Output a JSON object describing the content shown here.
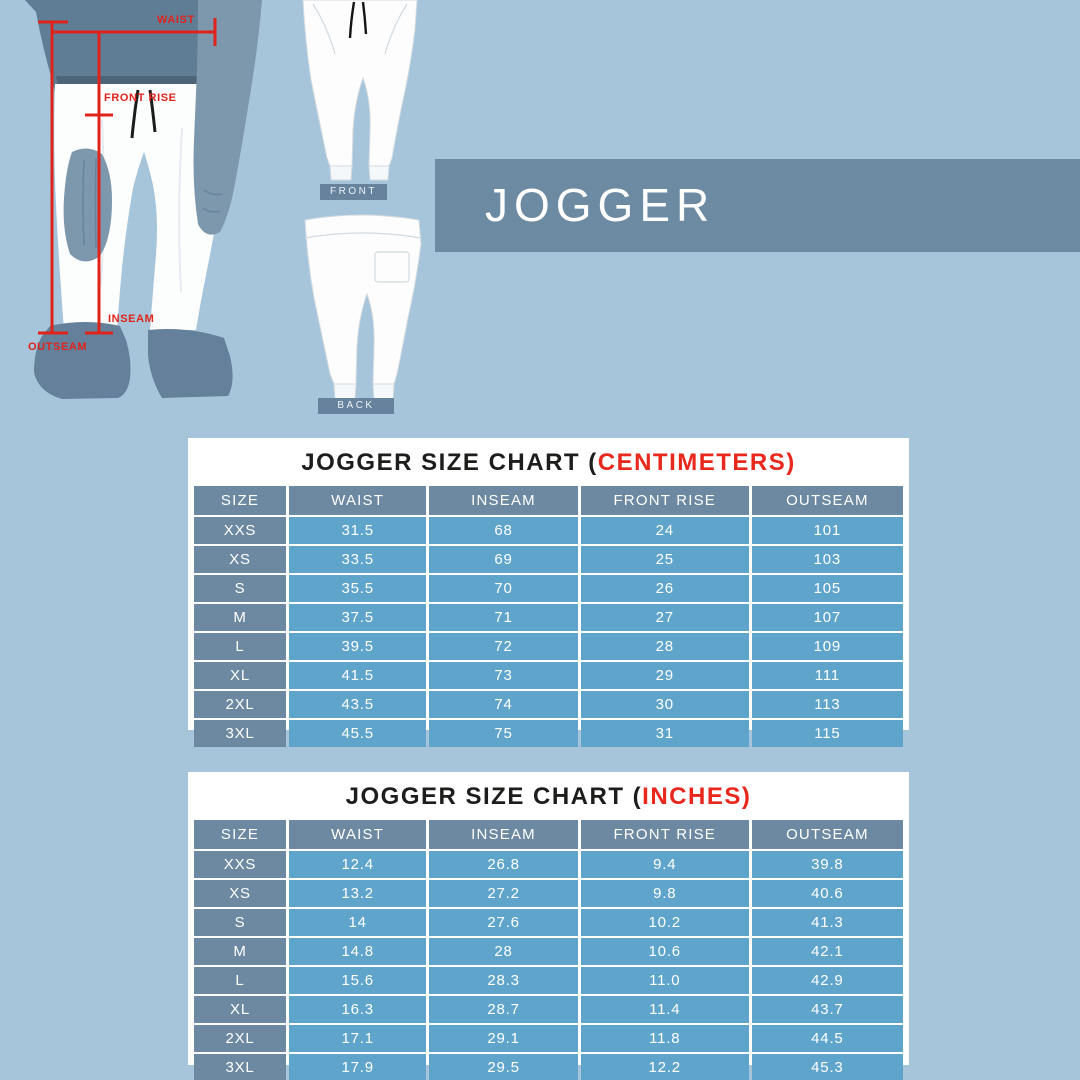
{
  "banner": {
    "title": "JOGGER"
  },
  "measurement_diagram": {
    "waist_label": "WAIST",
    "front_rise_label": "FRONT RISE",
    "inseam_label": "INSEAM",
    "outseam_label": "OUTSEAM",
    "front_view_label": "FRONT",
    "back_view_label": "BACK"
  },
  "colors": {
    "background": "#a6c5da",
    "banner_bg": "#6d8aa3",
    "header_cell_bg": "#6d89a1",
    "data_cell_bg": "#5fa5cb",
    "accent_red": "#df231b",
    "panel_bg": "#ffffff"
  },
  "tables": [
    {
      "title_prefix": "JOGGER SIZE CHART (",
      "unit": "CENTIMETERS",
      "title_suffix": ")",
      "columns": [
        "SIZE",
        "WAIST",
        "INSEAM",
        "FRONT RISE",
        "OUTSEAM"
      ],
      "rows": [
        {
          "size": "XXS",
          "values": [
            "31.5",
            "68",
            "24",
            "101"
          ]
        },
        {
          "size": "XS",
          "values": [
            "33.5",
            "69",
            "25",
            "103"
          ]
        },
        {
          "size": "S",
          "values": [
            "35.5",
            "70",
            "26",
            "105"
          ]
        },
        {
          "size": "M",
          "values": [
            "37.5",
            "71",
            "27",
            "107"
          ]
        },
        {
          "size": "L",
          "values": [
            "39.5",
            "72",
            "28",
            "109"
          ]
        },
        {
          "size": "XL",
          "values": [
            "41.5",
            "73",
            "29",
            "111"
          ]
        },
        {
          "size": "2XL",
          "values": [
            "43.5",
            "74",
            "30",
            "113"
          ]
        },
        {
          "size": "3XL",
          "values": [
            "45.5",
            "75",
            "31",
            "115"
          ]
        }
      ]
    },
    {
      "title_prefix": "JOGGER SIZE CHART (",
      "unit": "INCHES",
      "title_suffix": ")",
      "columns": [
        "SIZE",
        "WAIST",
        "INSEAM",
        "FRONT RISE",
        "OUTSEAM"
      ],
      "rows": [
        {
          "size": "XXS",
          "values": [
            "12.4",
            "26.8",
            "9.4",
            "39.8"
          ]
        },
        {
          "size": "XS",
          "values": [
            "13.2",
            "27.2",
            "9.8",
            "40.6"
          ]
        },
        {
          "size": "S",
          "values": [
            "14",
            "27.6",
            "10.2",
            "41.3"
          ]
        },
        {
          "size": "M",
          "values": [
            "14.8",
            "28",
            "10.6",
            "42.1"
          ]
        },
        {
          "size": "L",
          "values": [
            "15.6",
            "28.3",
            "11.0",
            "42.9"
          ]
        },
        {
          "size": "XL",
          "values": [
            "16.3",
            "28.7",
            "11.4",
            "43.7"
          ]
        },
        {
          "size": "2XL",
          "values": [
            "17.1",
            "29.1",
            "11.8",
            "44.5"
          ]
        },
        {
          "size": "3XL",
          "values": [
            "17.9",
            "29.5",
            "12.2",
            "45.3"
          ]
        }
      ]
    }
  ],
  "chart_data": [
    {
      "type": "table",
      "title": "JOGGER SIZE CHART (CENTIMETERS)",
      "columns": [
        "SIZE",
        "WAIST",
        "INSEAM",
        "FRONT RISE",
        "OUTSEAM"
      ],
      "rows": [
        [
          "XXS",
          31.5,
          68,
          24,
          101
        ],
        [
          "XS",
          33.5,
          69,
          25,
          103
        ],
        [
          "S",
          35.5,
          70,
          26,
          105
        ],
        [
          "M",
          37.5,
          71,
          27,
          107
        ],
        [
          "L",
          39.5,
          72,
          28,
          109
        ],
        [
          "XL",
          41.5,
          73,
          29,
          111
        ],
        [
          "2XL",
          43.5,
          74,
          30,
          113
        ],
        [
          "3XL",
          45.5,
          75,
          31,
          115
        ]
      ]
    },
    {
      "type": "table",
      "title": "JOGGER SIZE CHART (INCHES)",
      "columns": [
        "SIZE",
        "WAIST",
        "INSEAM",
        "FRONT RISE",
        "OUTSEAM"
      ],
      "rows": [
        [
          "XXS",
          12.4,
          26.8,
          9.4,
          39.8
        ],
        [
          "XS",
          13.2,
          27.2,
          9.8,
          40.6
        ],
        [
          "S",
          14,
          27.6,
          10.2,
          41.3
        ],
        [
          "M",
          14.8,
          28,
          10.6,
          42.1
        ],
        [
          "L",
          15.6,
          28.3,
          11.0,
          42.9
        ],
        [
          "XL",
          16.3,
          28.7,
          11.4,
          43.7
        ],
        [
          "2XL",
          17.1,
          29.1,
          11.8,
          44.5
        ],
        [
          "3XL",
          17.9,
          29.5,
          12.2,
          45.3
        ]
      ]
    }
  ]
}
